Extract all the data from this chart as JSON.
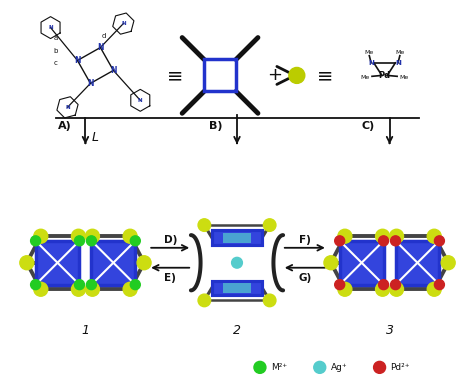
{
  "bg_color": "#ffffff",
  "blue_color": "#2233cc",
  "yellow_color": "#ccdd00",
  "gray_color": "#444444",
  "dark_color": "#111111",
  "green_color": "#22cc22",
  "cyan_color": "#55cccc",
  "red_color": "#cc2222",
  "legend_M2": "M²⁺",
  "legend_Ag": "Ag⁺",
  "legend_Pd": "Pd²⁺",
  "label_A": "A)",
  "label_B": "B)",
  "label_C": "C)",
  "label_D": "D)",
  "label_E": "E)",
  "label_F": "F)",
  "label_G": "G)",
  "label_1": "1",
  "label_2": "2",
  "label_3": "3",
  "label_L": "L"
}
